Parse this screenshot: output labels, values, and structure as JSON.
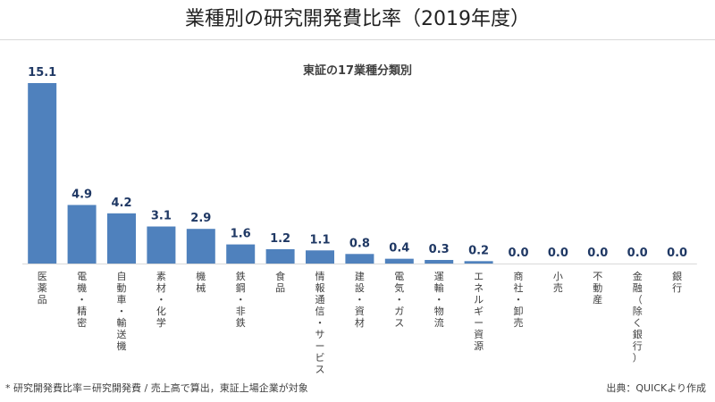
{
  "header": {
    "title": "業種別の研究開発費比率（2019年度）"
  },
  "footer": {
    "note": "* 研究開発費比率＝研究開発費 / 売上高で算出，東証上場企業が対象",
    "source": "出典：QUICKより作成"
  },
  "chart_data": {
    "type": "bar",
    "title": "東証の17業種分類別",
    "categories": [
      "医薬品",
      "電機・精密",
      "自動車・輸送機",
      "素材・化学",
      "機械",
      "鉄鋼・非鉄",
      "食品",
      "情報通信・サービス他",
      "建設・資材",
      "電気・ガス",
      "運輸・物流",
      "エネルギー資源",
      "商社・卸売",
      "小売",
      "不動産",
      "金融（除く銀行）",
      "銀行"
    ],
    "values": [
      15.1,
      4.9,
      4.2,
      3.1,
      2.9,
      1.6,
      1.2,
      1.1,
      0.8,
      0.4,
      0.3,
      0.2,
      0.0,
      0.0,
      0.0,
      0.0,
      0.0
    ],
    "value_labels": [
      "15.1",
      "4.9",
      "4.2",
      "3.1",
      "2.9",
      "1.6",
      "1.2",
      "1.1",
      "0.8",
      "0.4",
      "0.3",
      "0.2",
      "0.0",
      "0.0",
      "0.0",
      "0.0",
      "0.0"
    ],
    "ylim": [
      0,
      15.1
    ],
    "grid": false,
    "bar_color": "#4f81bd",
    "label_color": "#1f3864"
  }
}
